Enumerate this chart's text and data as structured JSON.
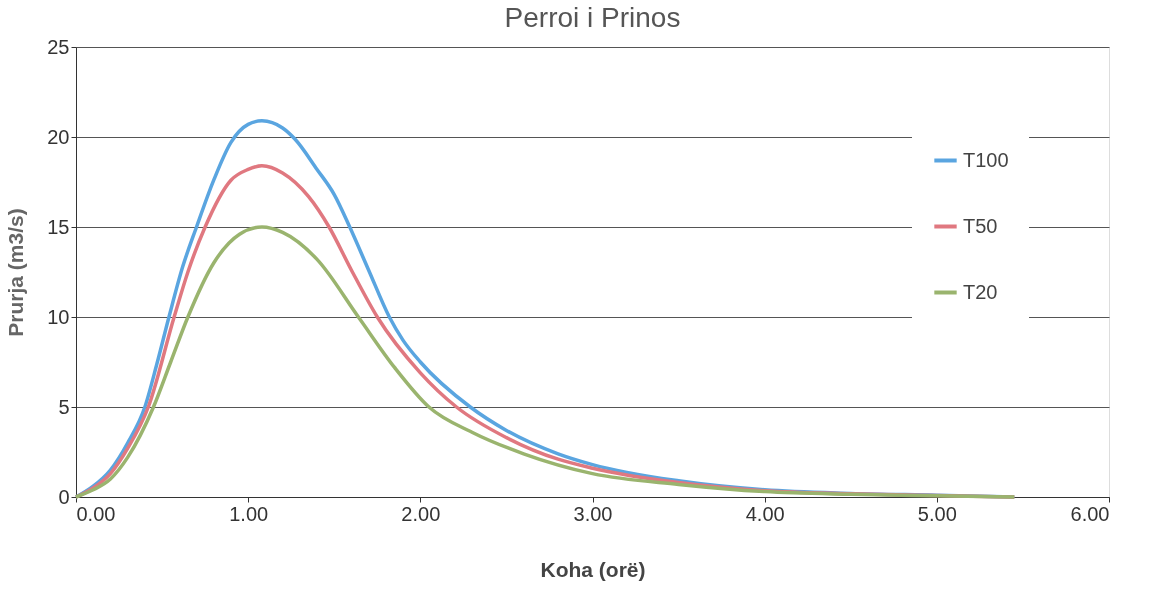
{
  "chart_data": {
    "type": "line",
    "title": "Perroi i Prinos",
    "xlabel": "Koha (orë)",
    "ylabel": "Prurja (m3/s)",
    "xlim": [
      0,
      6
    ],
    "xticks": [
      {
        "value": 0,
        "label": "0.00"
      },
      {
        "value": 1,
        "label": "1.00"
      },
      {
        "value": 2,
        "label": "2.00"
      },
      {
        "value": 3,
        "label": "3.00"
      },
      {
        "value": 4,
        "label": "4.00"
      },
      {
        "value": 5,
        "label": "5.00"
      },
      {
        "value": 6,
        "label": "6.00"
      }
    ],
    "ylim": [
      0,
      25
    ],
    "yticks": [
      0,
      5,
      10,
      15,
      20,
      25
    ],
    "grid": "y",
    "legend": "right",
    "marker": "none",
    "line_style": "solid",
    "series": [
      {
        "name": "T100",
        "color": "#5aa5e0",
        "x": [
          0,
          0.1,
          0.2,
          0.3,
          0.4,
          0.47,
          0.54,
          0.62,
          0.7,
          0.8,
          0.9,
          1.0,
          1.08,
          1.2,
          1.27,
          1.4,
          1.5,
          1.59,
          1.7,
          1.82,
          1.9,
          2.0,
          2.29,
          2.5,
          2.8,
          3.0,
          3.5,
          4.0,
          4.5,
          5.0,
          5.45
        ],
        "values": [
          0,
          0.6,
          1.5,
          3.0,
          5.0,
          7.4,
          10,
          12.8,
          15,
          17.6,
          19.7,
          20.7,
          20.9,
          20.5,
          19.9,
          18.2,
          16.8,
          15,
          12.6,
          10,
          8.7,
          7.5,
          5,
          3.7,
          2.4,
          1.8,
          0.9,
          0.4,
          0.2,
          0.1,
          0
        ]
      },
      {
        "name": "T50",
        "color": "#e07880",
        "x": [
          0,
          0.1,
          0.2,
          0.3,
          0.42,
          0.57,
          0.65,
          0.75,
          0.9,
          1.0,
          1.08,
          1.2,
          1.35,
          1.47,
          1.6,
          1.75,
          2.0,
          2.21,
          2.5,
          2.8,
          3.0,
          3.5,
          4.0,
          4.5,
          5.0,
          5.45
        ],
        "values": [
          0,
          0.5,
          1.3,
          2.7,
          5,
          10,
          12.5,
          15,
          17.6,
          18.2,
          18.4,
          18.0,
          16.7,
          15,
          12.6,
          10,
          6.9,
          5,
          3.3,
          2.1,
          1.6,
          0.8,
          0.35,
          0.18,
          0.08,
          0
        ]
      },
      {
        "name": "T20",
        "color": "#9ab46e",
        "x": [
          0,
          0.1,
          0.2,
          0.3,
          0.45,
          0.55,
          0.65,
          0.8,
          0.95,
          1.08,
          1.2,
          1.4,
          1.64,
          1.85,
          2.05,
          2.3,
          2.6,
          3.0,
          3.5,
          4.0,
          4.5,
          5.0,
          5.45
        ],
        "values": [
          0,
          0.4,
          1.0,
          2.2,
          5,
          7.5,
          10,
          13,
          14.6,
          15,
          14.7,
          13.2,
          10,
          7.2,
          5,
          3.6,
          2.4,
          1.3,
          0.7,
          0.3,
          0.15,
          0.07,
          0
        ]
      }
    ]
  }
}
